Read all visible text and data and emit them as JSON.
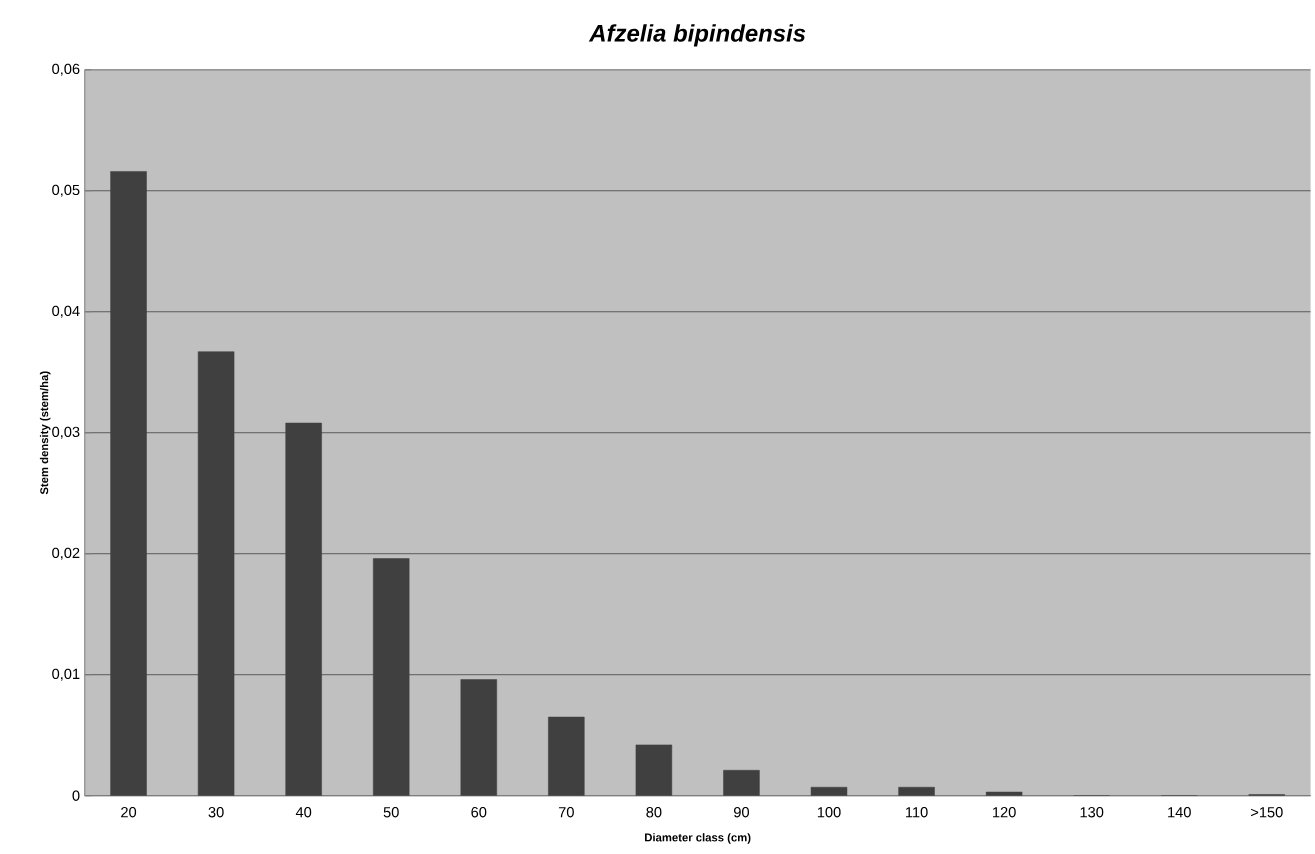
{
  "chart_data": {
    "type": "bar",
    "title": "Afzelia bipindensis",
    "xlabel": "Diameter class (cm)",
    "ylabel": "Stem density (stem/ha)",
    "categories": [
      "20",
      "30",
      "40",
      "50",
      "60",
      "70",
      "80",
      "90",
      "100",
      "110",
      "120",
      "130",
      "140",
      ">150"
    ],
    "values": [
      0.0516,
      0.0367,
      0.0308,
      0.0196,
      0.0096,
      0.0065,
      0.0042,
      0.0021,
      0.0007,
      0.0007,
      0.0003,
      0,
      0,
      0.0001
    ],
    "color": "#404040",
    "ylim": [
      0,
      0.06
    ],
    "yticks": [
      {
        "value": 0,
        "label": "0"
      },
      {
        "value": 0.01,
        "label": "0,01"
      },
      {
        "value": 0.02,
        "label": "0,02"
      },
      {
        "value": 0.03,
        "label": "0,03"
      },
      {
        "value": 0.04,
        "label": "0,04"
      },
      {
        "value": 0.05,
        "label": "0,05"
      },
      {
        "value": 0.06,
        "label": "0,06"
      }
    ],
    "grid": "y"
  }
}
